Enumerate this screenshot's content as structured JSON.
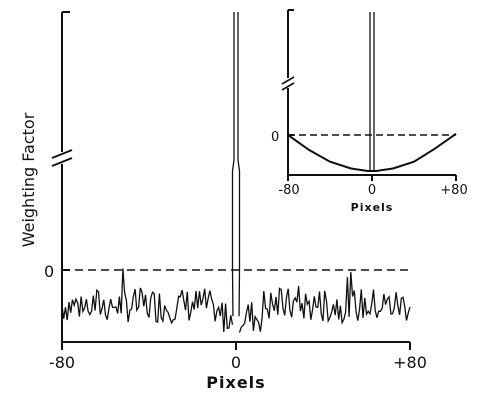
{
  "chart_data": [
    {
      "type": "line",
      "title": "",
      "xlabel": "Pixels",
      "ylabel": "Weighting Factor",
      "xlim": [
        -80,
        80
      ],
      "x_ticks": [
        "-80",
        "0",
        "+80"
      ],
      "y_ticks": [
        "0"
      ],
      "y_axis_break": true,
      "zero_line": "dashed",
      "grid": false,
      "series": [
        {
          "description": "noisy weighting function: negative noise floor with narrow central spike",
          "x": [
            -80,
            -60,
            -40,
            -20,
            -4,
            -2,
            -1,
            0,
            1,
            2,
            4,
            20,
            40,
            60,
            80
          ],
          "y": [
            -0.3,
            -0.28,
            -0.32,
            -0.3,
            -0.4,
            -0.42,
            1.0,
            6.0,
            1.0,
            -0.42,
            -0.4,
            -0.3,
            -0.32,
            -0.28,
            -0.3
          ]
        }
      ]
    },
    {
      "type": "line",
      "title": "",
      "xlabel": "Pixels",
      "ylabel": "",
      "xlim": [
        -80,
        80
      ],
      "x_ticks": [
        "-80",
        "0",
        "+80"
      ],
      "y_ticks": [
        "0"
      ],
      "y_axis_break": true,
      "zero_line": "dashed",
      "grid": false,
      "series": [
        {
          "description": "smooth parabolic weighting function with narrow central spike",
          "x": [
            -80,
            -60,
            -40,
            -20,
            -4,
            -1,
            0,
            1,
            4,
            20,
            40,
            60,
            80
          ],
          "y": [
            0.0,
            -0.24,
            -0.43,
            -0.54,
            -0.58,
            0.5,
            6.0,
            0.5,
            -0.58,
            -0.54,
            -0.43,
            -0.22,
            0.02
          ]
        }
      ]
    }
  ]
}
